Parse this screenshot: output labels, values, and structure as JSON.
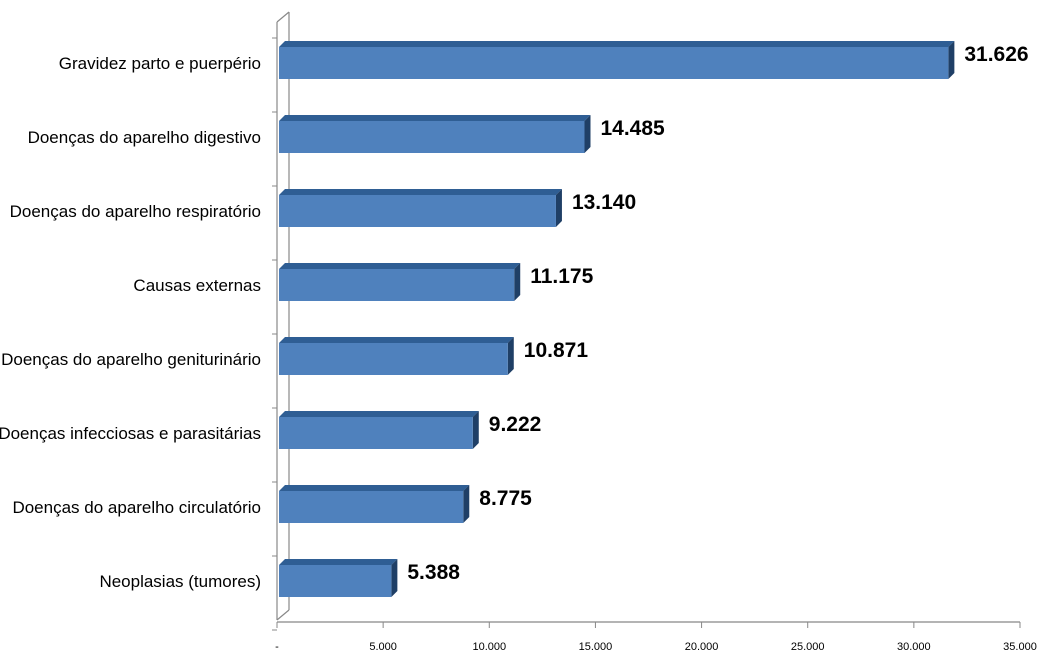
{
  "chart_data": {
    "type": "bar",
    "orientation": "horizontal",
    "style": "3d",
    "categories": [
      "Gravidez parto e puerpério",
      "Doenças do aparelho digestivo",
      "Doenças do aparelho respiratório",
      "Causas externas",
      "Doenças do aparelho geniturinário",
      "Doenças infecciosas e parasitárias",
      "Doenças do aparelho circulatório",
      "Neoplasias (tumores)"
    ],
    "values": [
      31626,
      14485,
      13140,
      11175,
      10871,
      9222,
      8775,
      5388
    ],
    "value_labels": [
      "31.626",
      "14.485",
      "13.140",
      "11.175",
      "10.871",
      "9.222",
      "8.775",
      "5.388"
    ],
    "xlim": [
      0,
      35000
    ],
    "x_ticks": [
      0,
      5000,
      10000,
      15000,
      20000,
      25000,
      30000,
      35000
    ],
    "x_tick_labels": [
      "-",
      "5.000",
      "10.000",
      "15.000",
      "20.000",
      "25.000",
      "30.000",
      "35.000"
    ],
    "grid": false,
    "legend": "none",
    "colors": {
      "bar_front": "#4F81BD",
      "bar_top": "#2F5E94",
      "bar_side": "#1F3F66",
      "axis": "#888888"
    }
  }
}
